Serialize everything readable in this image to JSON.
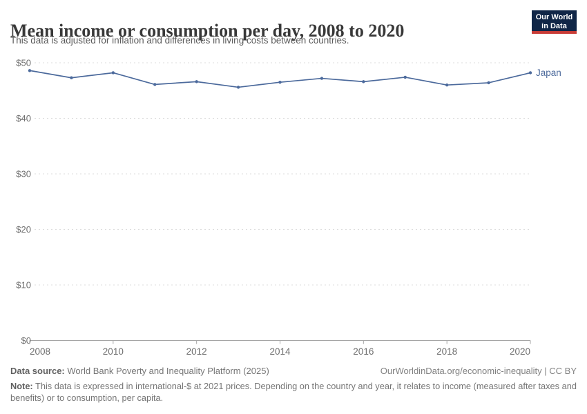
{
  "header": {
    "title": "Mean income or consumption per day, 2008 to 2020",
    "subtitle": "This data is adjusted for inflation and differences in living costs between countries."
  },
  "logo": {
    "line1": "Our World",
    "line2": "in Data",
    "background_color": "#102647",
    "bar_color": "#c83c37"
  },
  "chart_data": {
    "type": "line",
    "title": "Mean income or consumption per day, 2008 to 2020",
    "x": [
      2008,
      2009,
      2010,
      2011,
      2012,
      2013,
      2014,
      2015,
      2016,
      2017,
      2018,
      2019,
      2020
    ],
    "series": [
      {
        "name": "Japan",
        "color": "#4c6a9c",
        "values": [
          48.6,
          47.3,
          48.2,
          46.1,
          46.6,
          45.6,
          46.5,
          47.2,
          46.6,
          47.4,
          46.0,
          46.4,
          48.2
        ]
      }
    ],
    "ylim": [
      0,
      50
    ],
    "yticks": [
      {
        "value": 0,
        "label": "$0"
      },
      {
        "value": 10,
        "label": "$10"
      },
      {
        "value": 20,
        "label": "$20"
      },
      {
        "value": 30,
        "label": "$30"
      },
      {
        "value": 40,
        "label": "$40"
      },
      {
        "value": 50,
        "label": "$50"
      }
    ],
    "xticks": [
      {
        "value": 2008,
        "label": "2008"
      },
      {
        "value": 2010,
        "label": "2010"
      },
      {
        "value": 2012,
        "label": "2012"
      },
      {
        "value": 2014,
        "label": "2014"
      },
      {
        "value": 2016,
        "label": "2016"
      },
      {
        "value": 2018,
        "label": "2018"
      },
      {
        "value": 2020,
        "label": "2020"
      }
    ],
    "grid": "horizontal-dashed",
    "legend_position": "end-of-line-label",
    "axis_text_color": "#6e6e6e",
    "gridline_color": "#dcdcdc",
    "axis_line_color": "#a5a5a5"
  },
  "footer": {
    "datasource_label": "Data source:",
    "datasource_value": "World Bank Poverty and Inequality Platform (2025)",
    "credit": "OurWorldinData.org/economic-inequality | CC BY",
    "note_label": "Note:",
    "note_text": "This data is expressed in international-$ at 2021 prices. Depending on the country and year, it relates to income (measured after taxes and benefits) or to consumption, per capita."
  }
}
